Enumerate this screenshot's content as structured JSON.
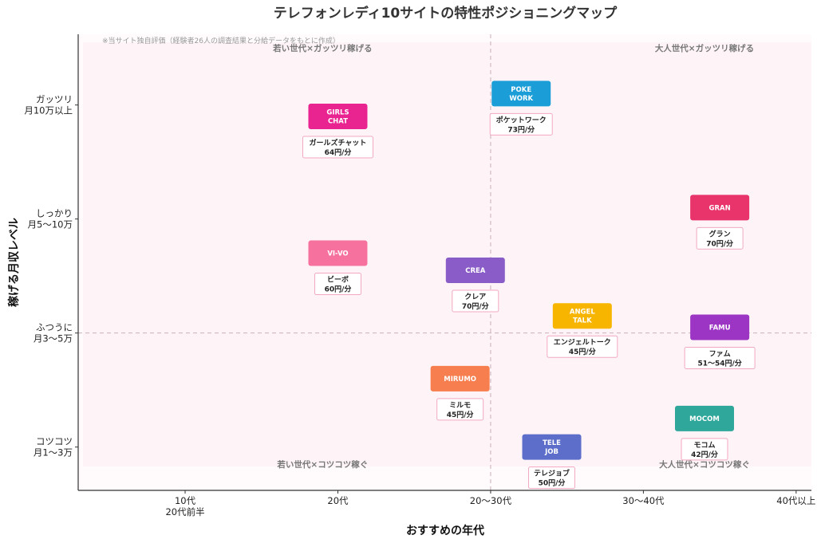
{
  "chart_data": {
    "type": "scatter",
    "title": "テレフォンレディ10サイトの特性ポジショニングマップ",
    "note": "※当サイト独自評価（経験者26人の調査結果と分給データをもとに作成）",
    "xlabel": "おすすめの年代",
    "ylabel": "稼げる月収レベル",
    "xlim": [
      0.3,
      5.1
    ],
    "ylim": [
      0.62,
      4.62
    ],
    "x_ticks": [
      {
        "value": 1,
        "label": [
          "10代",
          "20代前半"
        ]
      },
      {
        "value": 2,
        "label": [
          "20代"
        ]
      },
      {
        "value": 3,
        "label": [
          "20〜30代"
        ]
      },
      {
        "value": 4,
        "label": [
          "30〜40代"
        ]
      },
      {
        "value": 5,
        "label": [
          "40代以上"
        ]
      }
    ],
    "y_ticks": [
      {
        "value": 1,
        "label": [
          "コツコツ",
          "月1〜3万"
        ]
      },
      {
        "value": 2,
        "label": [
          "ふつうに",
          "月3〜5万"
        ]
      },
      {
        "value": 3,
        "label": [
          "しっかり",
          "月5〜10万"
        ]
      },
      {
        "value": 4,
        "label": [
          "ガッツリ",
          "月10万以上"
        ]
      }
    ],
    "divider": {
      "x": 3.0,
      "y": 2.0
    },
    "quadrants": {
      "top_left": "若い世代×ガッツリ稼げる",
      "top_right": "大人世代×ガッツリ稼げる",
      "bottom_left": "若い世代×コツコツ稼ぐ",
      "bottom_right": "大人世代×コツコツ稼ぐ"
    },
    "points": [
      {
        "brand": [
          "POKE",
          "WORK"
        ],
        "label": [
          "ポケットワーク",
          "73円/分"
        ],
        "x": 3.2,
        "y": 4.1,
        "color": "#1b9ed8"
      },
      {
        "brand": [
          "GIRLS",
          "CHAT"
        ],
        "label": [
          "ガールズチャット",
          "64円/分"
        ],
        "x": 2.0,
        "y": 3.9,
        "color": "#e9238f"
      },
      {
        "brand": [
          "GRAN"
        ],
        "label": [
          "グラン",
          "70円/分"
        ],
        "x": 4.5,
        "y": 3.1,
        "color": "#e8336b"
      },
      {
        "brand": [
          "VI-VO"
        ],
        "label": [
          "ビーボ",
          "60円/分"
        ],
        "x": 2.0,
        "y": 2.7,
        "color": "#f7719e"
      },
      {
        "brand": [
          "CREA"
        ],
        "label": [
          "クレア",
          "70円/分"
        ],
        "x": 2.9,
        "y": 2.55,
        "color": "#8a5cc7"
      },
      {
        "brand": [
          "ANGEL",
          "TALK"
        ],
        "label": [
          "エンジェルトーク",
          "45円/分"
        ],
        "x": 3.6,
        "y": 2.15,
        "color": "#f7b500"
      },
      {
        "brand": [
          "FAMU"
        ],
        "label": [
          "ファム",
          "51〜54円/分"
        ],
        "x": 4.5,
        "y": 2.05,
        "color": "#9c35c4"
      },
      {
        "brand": [
          "MIRUMO"
        ],
        "label": [
          "ミルモ",
          "45円/分"
        ],
        "x": 2.8,
        "y": 1.6,
        "color": "#f77e4e"
      },
      {
        "brand": [
          "MOCOM"
        ],
        "label": [
          "モコム",
          "42円/分"
        ],
        "x": 4.4,
        "y": 1.25,
        "color": "#2fa79b"
      },
      {
        "brand": [
          "TELE",
          "JOB"
        ],
        "label": [
          "テレジョブ",
          "50円/分"
        ],
        "x": 3.4,
        "y": 1.0,
        "color": "#5c6ec9"
      }
    ]
  }
}
